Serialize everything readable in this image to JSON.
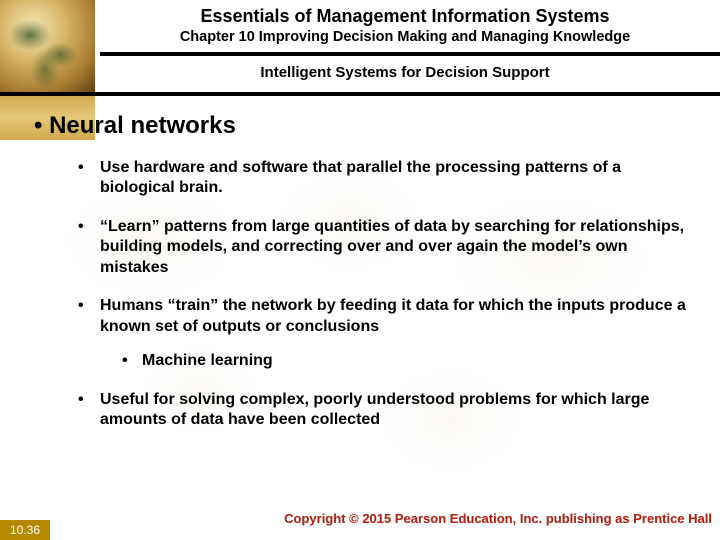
{
  "header": {
    "main_title": "Essentials of Management Information Systems",
    "sub_title": "Chapter 10 Improving Decision Making and Managing Knowledge",
    "section_title": "Intelligent Systems for Decision Support"
  },
  "content": {
    "topic": "Neural networks",
    "bullets": [
      {
        "text": "Use hardware and software that parallel the processing patterns of a biological brain."
      },
      {
        "text": "“Learn” patterns from large quantities of data by searching for relationships, building models, and correcting over and over again the model’s own mistakes"
      },
      {
        "text": "Humans “train” the network by feeding it data for which the inputs produce a known set of outputs or conclusions",
        "sub": [
          "Machine learning"
        ]
      },
      {
        "text": "Useful for solving complex, poorly understood problems for which large amounts of data have been collected"
      }
    ]
  },
  "footer": {
    "copyright": "Copyright © 2015 Pearson Education, Inc. publishing as Prentice Hall",
    "page_number": "10.36"
  },
  "colors": {
    "rule": "#000000",
    "accent_gold": "#cfa84e",
    "copyright_red": "#b22211",
    "page_tab_bg": "#b68a00"
  }
}
